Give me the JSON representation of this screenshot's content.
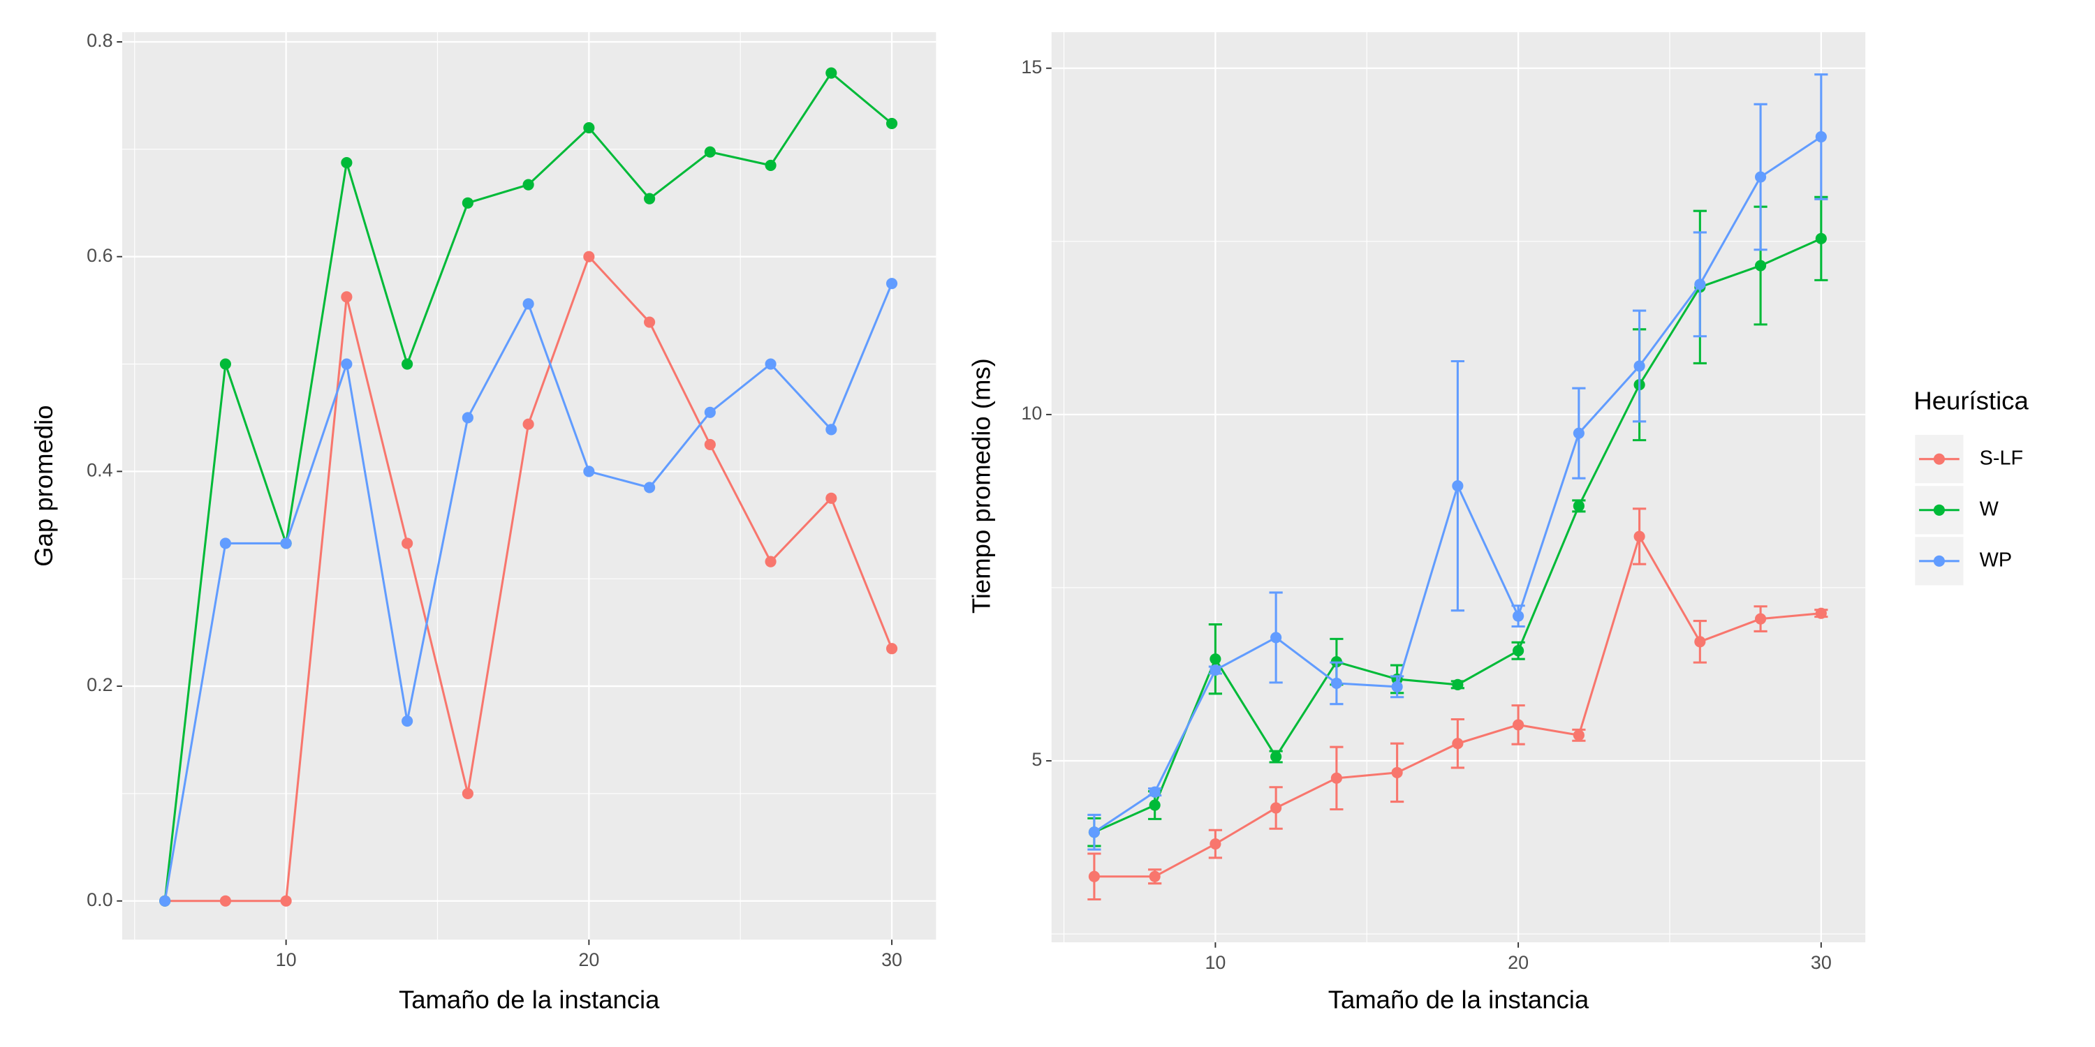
{
  "chart_data": [
    {
      "type": "line",
      "x_label": "Tamaño de la instancia",
      "y_label": "Gap promedio",
      "x": [
        6,
        8,
        10,
        12,
        14,
        16,
        18,
        20,
        22,
        24,
        26,
        28,
        30
      ],
      "xlim": [
        4.59,
        31.46
      ],
      "xticks": [
        10,
        20,
        30
      ],
      "ylim": [
        -0.036,
        0.809
      ],
      "yticks": [
        0.0,
        0.2,
        0.4,
        0.6,
        0.8
      ],
      "grid": true,
      "series": [
        {
          "name": "S-LF",
          "color": "#F8766D",
          "values": [
            0,
            0,
            0,
            0.5625,
            0.333,
            0.1,
            0.444,
            0.6,
            0.539,
            0.425,
            0.316,
            0.375,
            0.235
          ]
        },
        {
          "name": "W",
          "color": "#00BA38",
          "values": [
            0,
            0.5,
            0.333,
            0.6875,
            0.5,
            0.65,
            0.667,
            0.72,
            0.654,
            0.6975,
            0.685,
            0.771,
            0.724
          ]
        },
        {
          "name": "WP",
          "color": "#619CFF",
          "values": [
            0,
            0.333,
            0.333,
            0.5,
            0.1675,
            0.45,
            0.556,
            0.4,
            0.385,
            0.455,
            0.5,
            0.439,
            0.575
          ]
        }
      ]
    },
    {
      "type": "line",
      "x_label": "Tamaño de la instancia",
      "y_label": "Tiempo promedio (ms)",
      "legend_title": "Heurística",
      "legend_position": "right",
      "x": [
        6,
        8,
        10,
        12,
        14,
        16,
        18,
        20,
        22,
        24,
        26,
        28,
        30
      ],
      "xlim": [
        4.59,
        31.46
      ],
      "xticks": [
        10,
        20,
        30
      ],
      "ylim": [
        2.38,
        15.52
      ],
      "yticks": [
        5,
        10,
        15
      ],
      "grid": true,
      "series": [
        {
          "name": "S-LF",
          "color": "#F8766D",
          "values": [
            3.33,
            3.33,
            3.8,
            4.32,
            4.75,
            4.83,
            5.25,
            5.52,
            5.37,
            8.24,
            6.72,
            7.05,
            7.13
          ],
          "errors": [
            0.33,
            0.1,
            0.2,
            0.3,
            0.45,
            0.42,
            0.35,
            0.28,
            0.08,
            0.4,
            0.3,
            0.18,
            0.05
          ]
        },
        {
          "name": "W",
          "color": "#00BA38",
          "values": [
            3.97,
            4.36,
            6.47,
            5.06,
            6.43,
            6.18,
            6.1,
            6.59,
            8.68,
            10.43,
            11.84,
            12.15,
            12.54
          ],
          "errors": [
            0.2,
            0.2,
            0.5,
            0.08,
            0.33,
            0.2,
            0.05,
            0.12,
            0.08,
            0.8,
            1.1,
            0.85,
            0.6
          ]
        },
        {
          "name": "WP",
          "color": "#619CFF",
          "values": [
            3.97,
            4.55,
            6.31,
            6.78,
            6.12,
            6.07,
            8.97,
            7.09,
            9.73,
            10.7,
            11.88,
            13.43,
            14.01
          ],
          "errors": [
            0.25,
            0.05,
            0.05,
            0.65,
            0.3,
            0.15,
            1.8,
            0.15,
            0.65,
            0.8,
            0.75,
            1.05,
            0.9
          ]
        }
      ]
    }
  ]
}
